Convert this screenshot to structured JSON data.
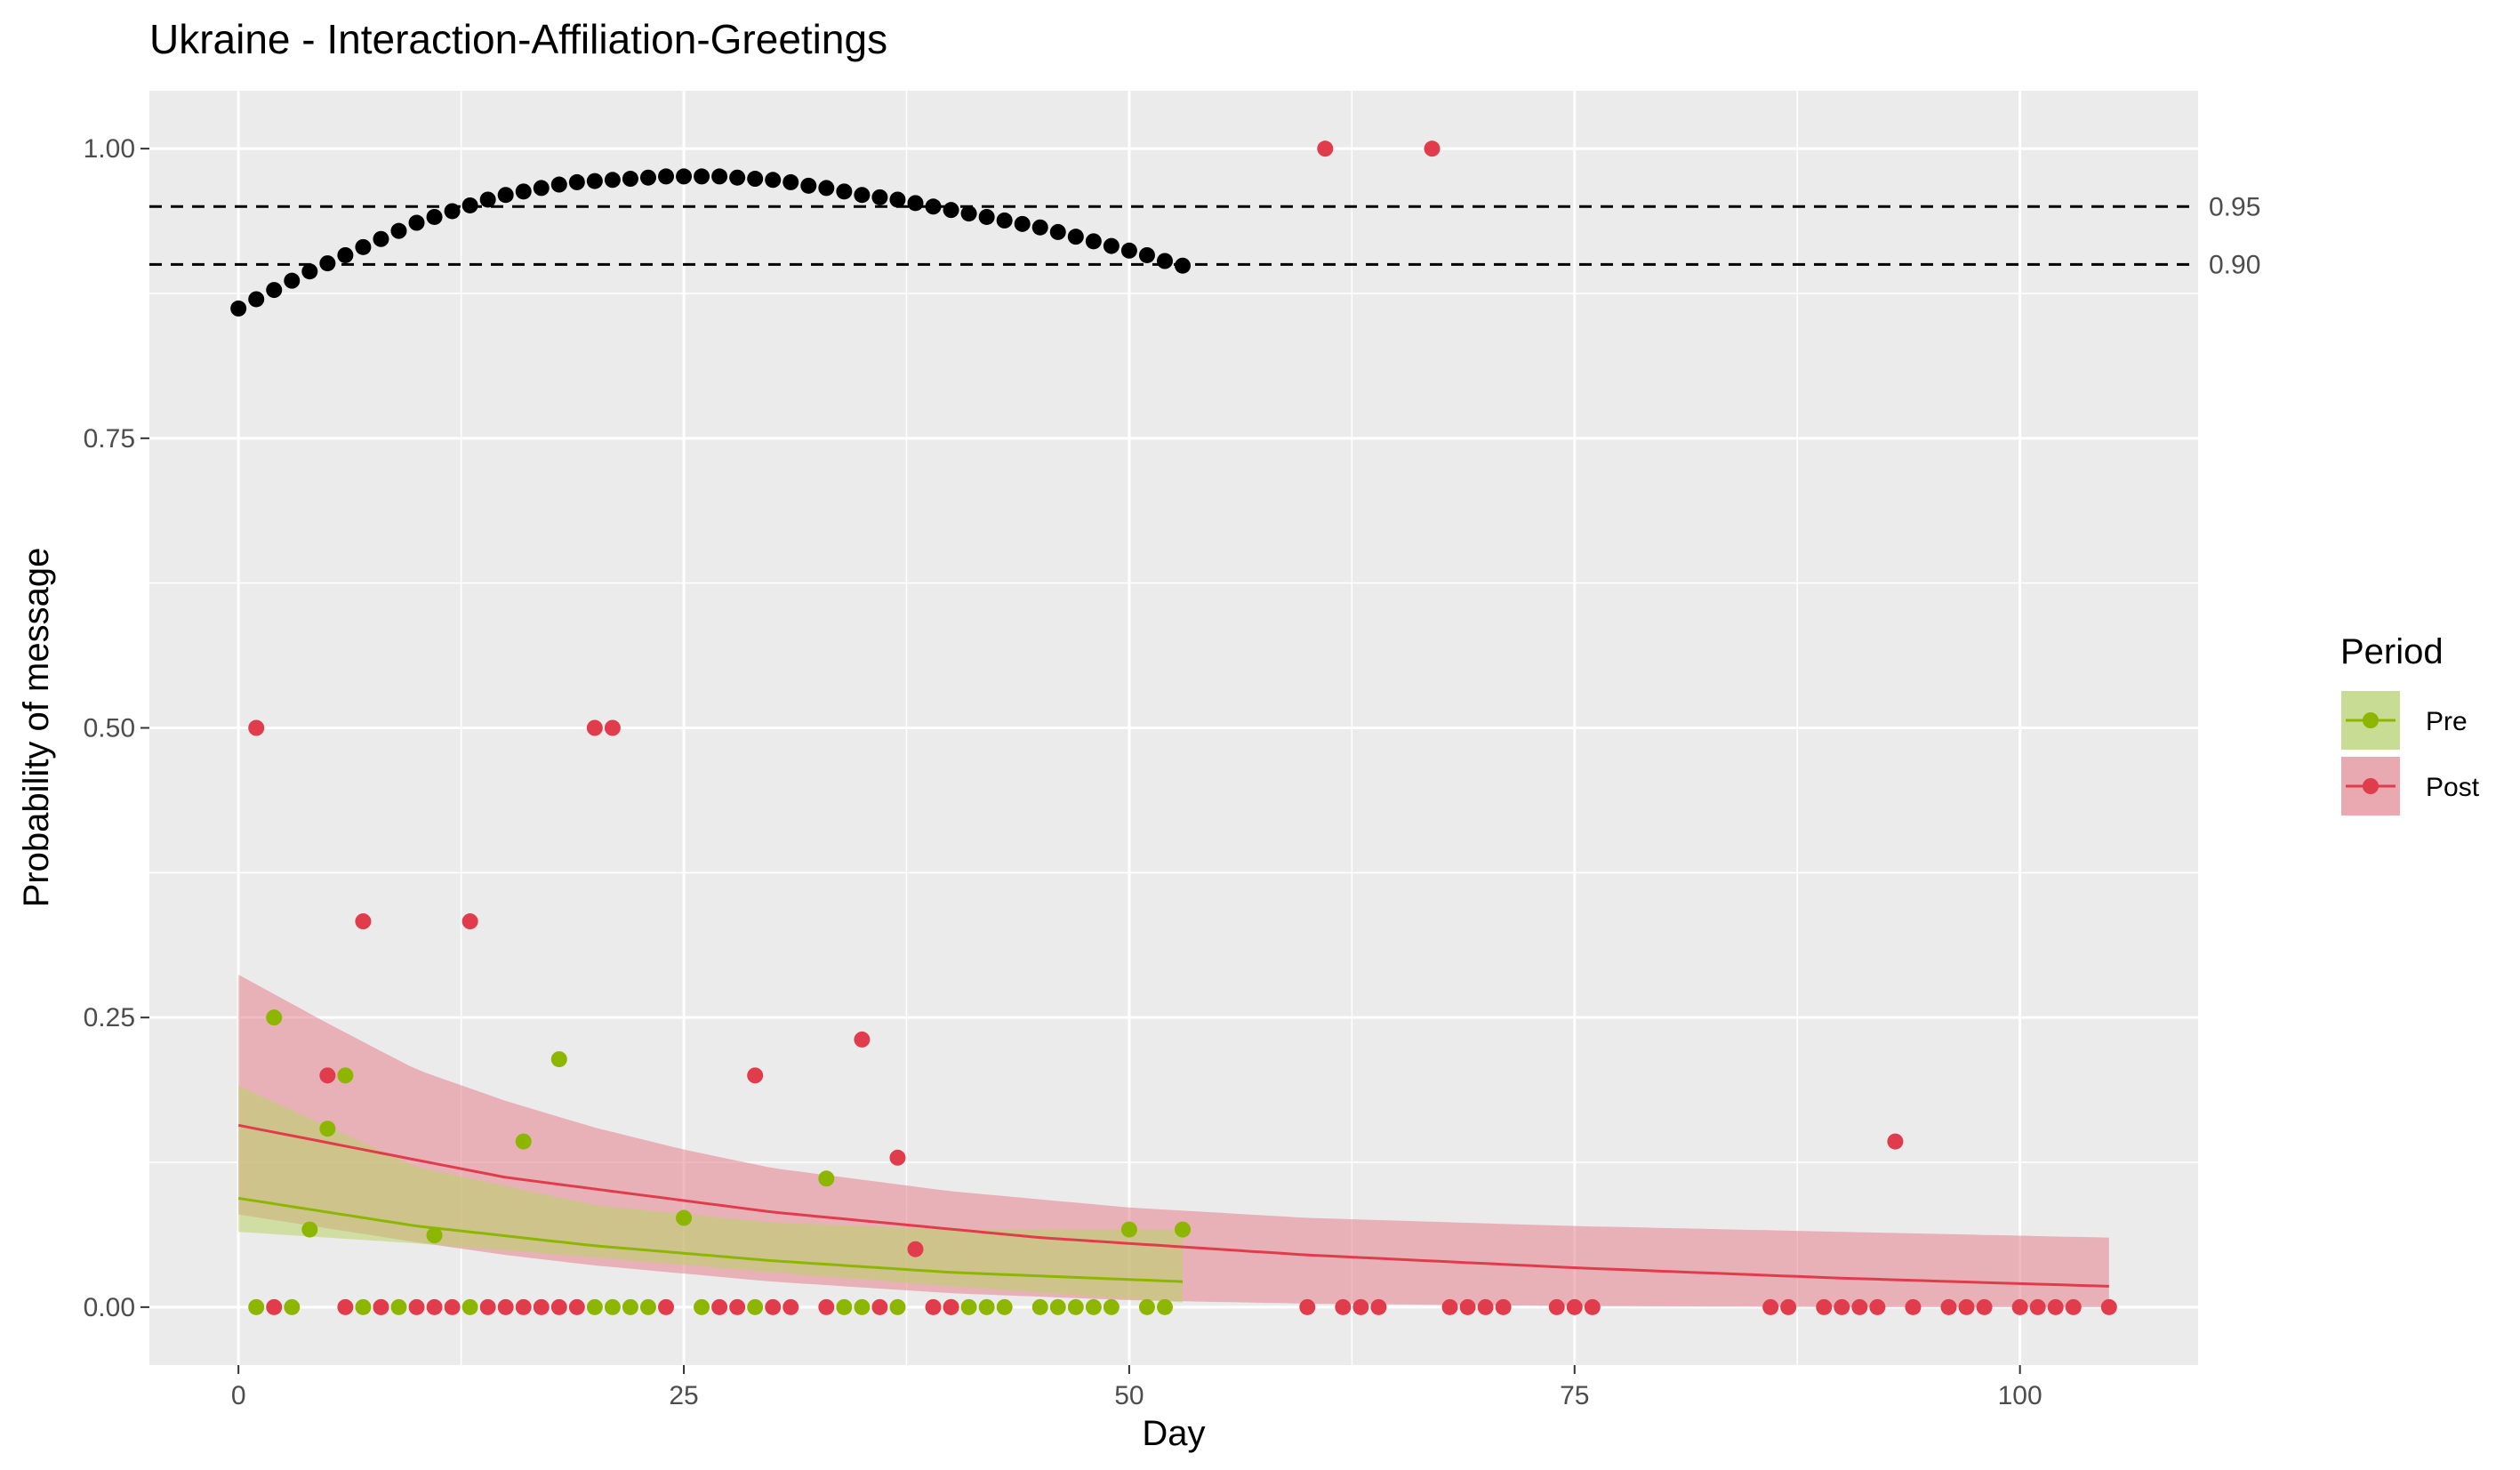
{
  "chart_data": {
    "type": "scatter",
    "title": "Ukraine - Interaction-Affiliation-Greetings",
    "xlabel": "Day",
    "ylabel": "Probability of message",
    "xlim": [
      -5,
      110
    ],
    "ylim": [
      -0.05,
      1.05
    ],
    "x_ticks": [
      0,
      25,
      50,
      75,
      100
    ],
    "x_tick_labels": [
      "0",
      "25",
      "50",
      "75",
      "100"
    ],
    "y_ticks": [
      0,
      0.25,
      0.5,
      0.75,
      1.0
    ],
    "y_tick_labels": [
      "0.00",
      "0.25",
      "0.50",
      "0.75",
      "1.00"
    ],
    "grid": true,
    "legend": {
      "title": "Period",
      "position": "right",
      "entries": [
        {
          "label": "Pre",
          "color": "#8db600",
          "fill": "#c9dc93"
        },
        {
          "label": "Post",
          "color": "#e03c4b",
          "fill": "#e9a9b1"
        }
      ]
    },
    "colors": {
      "panel": "#ebebeb",
      "grid": "#ffffff",
      "pre": "#8db600",
      "post": "#e03c4b",
      "pre_ribbon": "#b9d46a",
      "post_ribbon": "#e57f8d",
      "threshold": "#000000"
    },
    "reference_lines": [
      {
        "y": 0.95,
        "label": "0.95",
        "style": "dashed"
      },
      {
        "y": 0.9,
        "label": "0.90",
        "style": "dashed"
      }
    ],
    "threshold_series": {
      "name": "",
      "x": [
        0,
        1,
        2,
        3,
        4,
        5,
        6,
        7,
        8,
        9,
        10,
        11,
        12,
        13,
        14,
        15,
        16,
        17,
        18,
        19,
        20,
        21,
        22,
        23,
        24,
        25,
        26,
        27,
        28,
        29,
        30,
        31,
        32,
        33,
        34,
        35,
        36,
        37,
        38,
        39,
        40,
        41,
        42,
        43,
        44,
        45,
        46,
        47,
        48,
        49,
        50,
        51,
        52,
        53
      ],
      "y": [
        0.862,
        0.87,
        0.878,
        0.886,
        0.894,
        0.901,
        0.908,
        0.915,
        0.922,
        0.929,
        0.936,
        0.941,
        0.946,
        0.951,
        0.956,
        0.96,
        0.963,
        0.966,
        0.969,
        0.971,
        0.972,
        0.973,
        0.974,
        0.975,
        0.976,
        0.976,
        0.976,
        0.976,
        0.975,
        0.974,
        0.973,
        0.971,
        0.968,
        0.966,
        0.963,
        0.96,
        0.958,
        0.956,
        0.953,
        0.95,
        0.947,
        0.944,
        0.941,
        0.938,
        0.935,
        0.932,
        0.928,
        0.924,
        0.92,
        0.916,
        0.912,
        0.908,
        0.903,
        0.899
      ]
    },
    "series": [
      {
        "name": "Pre",
        "points": [
          [
            1,
            0
          ],
          [
            2,
            0.25
          ],
          [
            3,
            0
          ],
          [
            4,
            0.067
          ],
          [
            5,
            0.154
          ],
          [
            6,
            0.2
          ],
          [
            7,
            0
          ],
          [
            8,
            0
          ],
          [
            9,
            0
          ],
          [
            11,
            0.062
          ],
          [
            13,
            0
          ],
          [
            16,
            0.143
          ],
          [
            18,
            0.214
          ],
          [
            20,
            0
          ],
          [
            21,
            0
          ],
          [
            22,
            0
          ],
          [
            23,
            0
          ],
          [
            25,
            0.077
          ],
          [
            26,
            0
          ],
          [
            29,
            0
          ],
          [
            33,
            0.111
          ],
          [
            34,
            0
          ],
          [
            35,
            0
          ],
          [
            37,
            0
          ],
          [
            40,
            0
          ],
          [
            41,
            0
          ],
          [
            42,
            0
          ],
          [
            43,
            0
          ],
          [
            45,
            0
          ],
          [
            46,
            0
          ],
          [
            47,
            0
          ],
          [
            48,
            0
          ],
          [
            49,
            0
          ],
          [
            50,
            0.067
          ],
          [
            51,
            0
          ],
          [
            52,
            0
          ],
          [
            53,
            0.067
          ]
        ],
        "fit": {
          "x": [
            0,
            10,
            20,
            30,
            40,
            53
          ],
          "y": [
            0.094,
            0.07,
            0.053,
            0.04,
            0.03,
            0.022
          ]
        },
        "ribbon": {
          "x": [
            0,
            10,
            20,
            30,
            40,
            53
          ],
          "lower": [
            0.065,
            0.055,
            0.043,
            0.03,
            0.018,
            0.004
          ],
          "upper": [
            0.191,
            0.121,
            0.088,
            0.073,
            0.067,
            0.067
          ]
        }
      },
      {
        "name": "Post",
        "points": [
          [
            1,
            0.5
          ],
          [
            2,
            0
          ],
          [
            5,
            0.2
          ],
          [
            6,
            0
          ],
          [
            7,
            0.333
          ],
          [
            8,
            0
          ],
          [
            10,
            0
          ],
          [
            11,
            0
          ],
          [
            12,
            0
          ],
          [
            13,
            0.333
          ],
          [
            14,
            0
          ],
          [
            15,
            0
          ],
          [
            16,
            0
          ],
          [
            17,
            0
          ],
          [
            18,
            0
          ],
          [
            19,
            0
          ],
          [
            20,
            0.5
          ],
          [
            21,
            0.5
          ],
          [
            24,
            0
          ],
          [
            27,
            0
          ],
          [
            28,
            0
          ],
          [
            29,
            0.2
          ],
          [
            30,
            0
          ],
          [
            31,
            0
          ],
          [
            33,
            0
          ],
          [
            35,
            0.231
          ],
          [
            36,
            0
          ],
          [
            37,
            0.129
          ],
          [
            38,
            0.05
          ],
          [
            39,
            0
          ],
          [
            40,
            0
          ],
          [
            60,
            0
          ],
          [
            61,
            1.0
          ],
          [
            62,
            0
          ],
          [
            63,
            0
          ],
          [
            64,
            0
          ],
          [
            67,
            1.0
          ],
          [
            68,
            0
          ],
          [
            69,
            0
          ],
          [
            70,
            0
          ],
          [
            71,
            0
          ],
          [
            74,
            0
          ],
          [
            75,
            0
          ],
          [
            76,
            0
          ],
          [
            86,
            0
          ],
          [
            87,
            0
          ],
          [
            89,
            0
          ],
          [
            90,
            0
          ],
          [
            91,
            0
          ],
          [
            92,
            0
          ],
          [
            93,
            0.143
          ],
          [
            94,
            0
          ],
          [
            96,
            0
          ],
          [
            97,
            0
          ],
          [
            98,
            0
          ],
          [
            100,
            0
          ],
          [
            101,
            0
          ],
          [
            102,
            0
          ],
          [
            103,
            0
          ],
          [
            105,
            0
          ]
        ],
        "fit": {
          "x": [
            0,
            15,
            30,
            45,
            60,
            75,
            90,
            105
          ],
          "y": [
            0.157,
            0.112,
            0.082,
            0.06,
            0.045,
            0.034,
            0.025,
            0.018
          ]
        },
        "ribbon": {
          "x": [
            0,
            5,
            10,
            15,
            20,
            25,
            30,
            40,
            50,
            60,
            75,
            90,
            105
          ],
          "lower": [
            0.08,
            0.068,
            0.056,
            0.045,
            0.036,
            0.029,
            0.022,
            0.012,
            0.006,
            0.003,
            0.001,
            0.0,
            0.0
          ],
          "upper": [
            0.287,
            0.245,
            0.205,
            0.178,
            0.155,
            0.136,
            0.12,
            0.1,
            0.086,
            0.077,
            0.07,
            0.065,
            0.06
          ]
        }
      }
    ]
  }
}
